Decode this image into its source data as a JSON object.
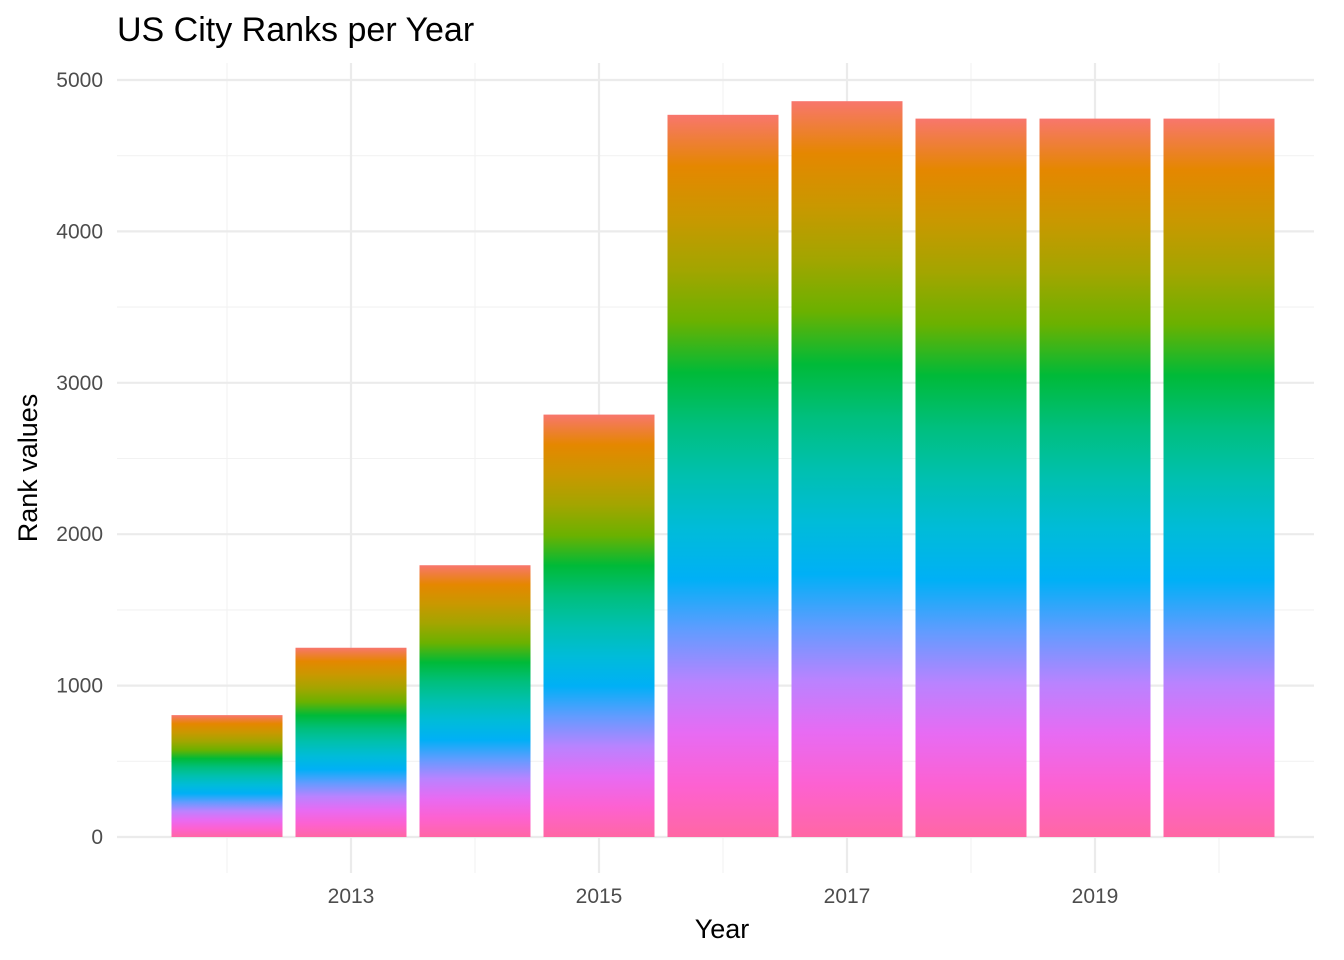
{
  "chart_data": {
    "type": "bar",
    "stacked": true,
    "title": "US City Ranks per Year",
    "xlabel": "Year",
    "ylabel": "Rank values",
    "x": [
      2012,
      2013,
      2014,
      2015,
      2016,
      2017,
      2018,
      2019,
      2020
    ],
    "x_ticks": [
      "2013",
      "2015",
      "2017",
      "2019"
    ],
    "y_ticks": [
      "0",
      "1000",
      "2000",
      "3000",
      "4000",
      "5000"
    ],
    "values": [
      805,
      1250,
      1795,
      2790,
      4770,
      4860,
      4745,
      4745,
      4745
    ],
    "ylim": [
      0,
      5000
    ],
    "grid": true,
    "legend": "none",
    "fill": "gradient by stacked city rank (many segments, hue palette)",
    "palette": [
      "#f8766d",
      "#e58700",
      "#c99800",
      "#a3a500",
      "#6bb100",
      "#00ba38",
      "#00bf7d",
      "#00c0af",
      "#00bcd8",
      "#00b0f6",
      "#619cff",
      "#b983ff",
      "#e76bf3",
      "#fd61d1",
      "#ff67a4"
    ]
  }
}
